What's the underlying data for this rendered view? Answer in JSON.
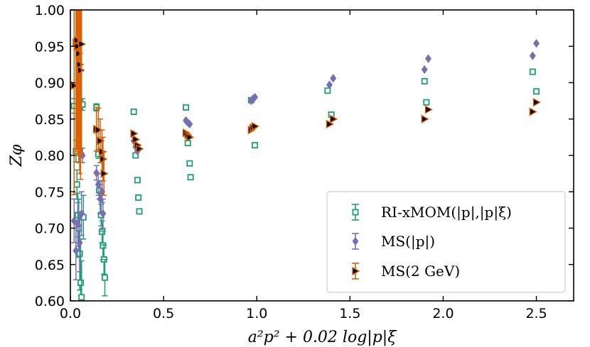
{
  "chart_data": {
    "type": "scatter",
    "title": "",
    "xlabel": "a²p² + 0.02 log|p|ξ",
    "ylabel": "Zφ",
    "xlim": [
      0.0,
      2.7
    ],
    "ylim": [
      0.6,
      1.0
    ],
    "x_ticks": [
      "0.0",
      "0.5",
      "1.0",
      "1.5",
      "2.0",
      "2.5"
    ],
    "y_ticks": [
      "0.60",
      "0.65",
      "0.70",
      "0.75",
      "0.80",
      "0.85",
      "0.90",
      "0.95",
      "1.00"
    ],
    "x_tick_values": [
      0.0,
      0.5,
      1.0,
      1.5,
      2.0,
      2.5
    ],
    "y_tick_values": [
      0.6,
      0.65,
      0.7,
      0.75,
      0.8,
      0.85,
      0.9,
      0.95,
      1.0
    ],
    "legend_position": "lower-right",
    "series": [
      {
        "name": "RI-xMOM(|p|,|p|ξ)",
        "color": "#1b9e77",
        "marker": "square-open",
        "points": [
          {
            "x": 0.02,
            "y": 0.868,
            "err": 0.01
          },
          {
            "x": 0.03,
            "y": 0.806,
            "err": 0.015
          },
          {
            "x": 0.035,
            "y": 0.76,
            "err": 0.02
          },
          {
            "x": 0.04,
            "y": 0.718,
            "err": 0.03
          },
          {
            "x": 0.045,
            "y": 0.7,
            "err": 0.04
          },
          {
            "x": 0.05,
            "y": 0.665,
            "err": 0.05
          },
          {
            "x": 0.055,
            "y": 0.625,
            "err": 0.06
          },
          {
            "x": 0.06,
            "y": 0.605,
            "err": 0.05
          },
          {
            "x": 0.065,
            "y": 0.87,
            "err": 0.008
          },
          {
            "x": 0.07,
            "y": 0.715,
            "err": 0.03
          },
          {
            "x": 0.14,
            "y": 0.866,
            "err": 0.005
          },
          {
            "x": 0.15,
            "y": 0.802,
            "err": 0.006
          },
          {
            "x": 0.155,
            "y": 0.752,
            "err": 0.012
          },
          {
            "x": 0.165,
            "y": 0.718,
            "err": 0.015
          },
          {
            "x": 0.17,
            "y": 0.695,
            "err": 0.015
          },
          {
            "x": 0.175,
            "y": 0.676,
            "err": 0.02
          },
          {
            "x": 0.18,
            "y": 0.657,
            "err": 0.02
          },
          {
            "x": 0.185,
            "y": 0.632,
            "err": 0.025
          },
          {
            "x": 0.34,
            "y": 0.86,
            "err": 0.003
          },
          {
            "x": 0.35,
            "y": 0.8,
            "err": 0.003
          },
          {
            "x": 0.36,
            "y": 0.766,
            "err": 0.003
          },
          {
            "x": 0.365,
            "y": 0.742,
            "err": 0.003
          },
          {
            "x": 0.37,
            "y": 0.723,
            "err": 0.003
          },
          {
            "x": 0.62,
            "y": 0.866,
            "err": 0.003
          },
          {
            "x": 0.63,
            "y": 0.817,
            "err": 0.003
          },
          {
            "x": 0.64,
            "y": 0.789,
            "err": 0.003
          },
          {
            "x": 0.645,
            "y": 0.77,
            "err": 0.003
          },
          {
            "x": 0.97,
            "y": 0.876,
            "err": 0.003
          },
          {
            "x": 0.99,
            "y": 0.814,
            "err": 0.003
          },
          {
            "x": 1.38,
            "y": 0.889,
            "err": 0.003
          },
          {
            "x": 1.4,
            "y": 0.856,
            "err": 0.003
          },
          {
            "x": 1.9,
            "y": 0.902,
            "err": 0.003
          },
          {
            "x": 1.91,
            "y": 0.873,
            "err": 0.003
          },
          {
            "x": 2.48,
            "y": 0.915,
            "err": 0.003
          },
          {
            "x": 2.5,
            "y": 0.888,
            "err": 0.003
          }
        ]
      },
      {
        "name": "MS(|p|)",
        "color": "#7570b3",
        "marker": "diamond",
        "points": [
          {
            "x": 0.02,
            "y": 0.71,
            "err": 0.03
          },
          {
            "x": 0.03,
            "y": 0.669,
            "err": 0.04
          },
          {
            "x": 0.04,
            "y": 0.705,
            "err": 0.03
          },
          {
            "x": 0.05,
            "y": 0.68,
            "err": 0.04
          },
          {
            "x": 0.06,
            "y": 0.72,
            "err": 0.03
          },
          {
            "x": 0.065,
            "y": 0.8,
            "err": 0.01
          },
          {
            "x": 0.14,
            "y": 0.776,
            "err": 0.01
          },
          {
            "x": 0.15,
            "y": 0.76,
            "err": 0.015
          },
          {
            "x": 0.16,
            "y": 0.74,
            "err": 0.02
          },
          {
            "x": 0.17,
            "y": 0.75,
            "err": 0.015
          },
          {
            "x": 0.175,
            "y": 0.72,
            "err": 0.02
          },
          {
            "x": 0.34,
            "y": 0.82,
            "err": 0.003
          },
          {
            "x": 0.35,
            "y": 0.812,
            "err": 0.003
          },
          {
            "x": 0.36,
            "y": 0.806,
            "err": 0.003
          },
          {
            "x": 0.62,
            "y": 0.848,
            "err": 0.003
          },
          {
            "x": 0.63,
            "y": 0.845,
            "err": 0.003
          },
          {
            "x": 0.64,
            "y": 0.843,
            "err": 0.003
          },
          {
            "x": 0.97,
            "y": 0.875,
            "err": 0.003
          },
          {
            "x": 0.98,
            "y": 0.878,
            "err": 0.003
          },
          {
            "x": 0.99,
            "y": 0.88,
            "err": 0.003
          },
          {
            "x": 1.39,
            "y": 0.897,
            "err": 0.003
          },
          {
            "x": 1.41,
            "y": 0.906,
            "err": 0.003
          },
          {
            "x": 1.9,
            "y": 0.918,
            "err": 0.003
          },
          {
            "x": 1.92,
            "y": 0.933,
            "err": 0.003
          },
          {
            "x": 2.48,
            "y": 0.937,
            "err": 0.003
          },
          {
            "x": 2.5,
            "y": 0.954,
            "err": 0.003
          }
        ]
      },
      {
        "name": "MS(2 GeV)",
        "color": "#d95f02",
        "marker": "triangle-right",
        "points": [
          {
            "x": 0.02,
            "y": 0.896,
            "err": 0.15
          },
          {
            "x": 0.03,
            "y": 0.955,
            "err": 0.15
          },
          {
            "x": 0.035,
            "y": 0.958,
            "err": 0.15
          },
          {
            "x": 0.04,
            "y": 0.95,
            "err": 0.15
          },
          {
            "x": 0.045,
            "y": 0.94,
            "err": 0.15
          },
          {
            "x": 0.05,
            "y": 0.925,
            "err": 0.15
          },
          {
            "x": 0.055,
            "y": 0.917,
            "err": 0.15
          },
          {
            "x": 0.06,
            "y": 0.953,
            "err": 0.15
          },
          {
            "x": 0.14,
            "y": 0.836,
            "err": 0.03
          },
          {
            "x": 0.15,
            "y": 0.835,
            "err": 0.03
          },
          {
            "x": 0.16,
            "y": 0.82,
            "err": 0.03
          },
          {
            "x": 0.17,
            "y": 0.805,
            "err": 0.03
          },
          {
            "x": 0.175,
            "y": 0.795,
            "err": 0.03
          },
          {
            "x": 0.18,
            "y": 0.775,
            "err": 0.03
          },
          {
            "x": 0.34,
            "y": 0.83,
            "err": 0.004
          },
          {
            "x": 0.35,
            "y": 0.822,
            "err": 0.004
          },
          {
            "x": 0.36,
            "y": 0.814,
            "err": 0.004
          },
          {
            "x": 0.37,
            "y": 0.809,
            "err": 0.004
          },
          {
            "x": 0.62,
            "y": 0.831,
            "err": 0.003
          },
          {
            "x": 0.63,
            "y": 0.828,
            "err": 0.003
          },
          {
            "x": 0.64,
            "y": 0.825,
            "err": 0.003
          },
          {
            "x": 0.97,
            "y": 0.835,
            "err": 0.003
          },
          {
            "x": 0.98,
            "y": 0.838,
            "err": 0.003
          },
          {
            "x": 0.99,
            "y": 0.84,
            "err": 0.003
          },
          {
            "x": 1.39,
            "y": 0.843,
            "err": 0.003
          },
          {
            "x": 1.41,
            "y": 0.85,
            "err": 0.003
          },
          {
            "x": 1.9,
            "y": 0.85,
            "err": 0.003
          },
          {
            "x": 1.92,
            "y": 0.863,
            "err": 0.003
          },
          {
            "x": 2.48,
            "y": 0.86,
            "err": 0.003
          },
          {
            "x": 2.5,
            "y": 0.873,
            "err": 0.003
          }
        ]
      }
    ]
  }
}
